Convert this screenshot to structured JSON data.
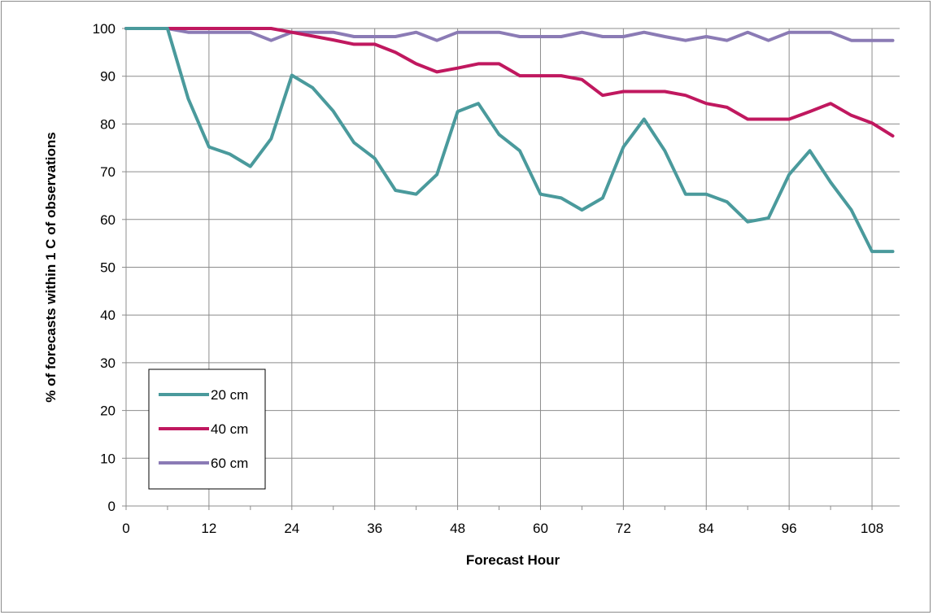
{
  "chart_data": {
    "type": "line",
    "title": "",
    "xlabel": "Forecast Hour",
    "ylabel": "% of forecasts within 1 C of observations",
    "xlim": [
      0,
      112
    ],
    "ylim": [
      0,
      100
    ],
    "xticks": [
      0,
      12,
      24,
      36,
      48,
      60,
      72,
      84,
      96,
      108
    ],
    "yticks": [
      0,
      10,
      20,
      30,
      40,
      50,
      60,
      70,
      80,
      90,
      100
    ],
    "grid": true,
    "legend_position": "bottom-left",
    "x": [
      0,
      3,
      6,
      9,
      12,
      15,
      18,
      21,
      24,
      27,
      30,
      33,
      36,
      39,
      42,
      45,
      48,
      51,
      54,
      57,
      60,
      63,
      66,
      69,
      72,
      75,
      78,
      81,
      84,
      87,
      90,
      93,
      96,
      99,
      102,
      105,
      108,
      111
    ],
    "series": [
      {
        "name": "20 cm",
        "color": "#4a9a9c",
        "values": [
          100,
          100,
          100,
          85.3,
          75.2,
          73.7,
          71.1,
          76.9,
          90.2,
          87.6,
          82.7,
          76.1,
          72.8,
          66.1,
          65.3,
          69.4,
          82.6,
          84.3,
          77.8,
          74.4,
          65.3,
          64.5,
          62.0,
          64.5,
          75.2,
          81.0,
          74.4,
          65.3,
          65.3,
          63.7,
          59.5,
          60.3,
          69.4,
          74.4,
          67.8,
          62.0,
          53.3,
          53.3
        ]
      },
      {
        "name": "40 cm",
        "color": "#c0185f",
        "values": [
          100,
          100,
          100,
          100,
          100,
          100,
          100,
          100,
          99.2,
          98.4,
          97.6,
          96.7,
          96.7,
          95.0,
          92.6,
          90.9,
          91.7,
          92.6,
          92.6,
          90.1,
          90.1,
          90.1,
          89.3,
          86.0,
          86.8,
          86.8,
          86.8,
          86.0,
          84.3,
          83.5,
          81.0,
          81.0,
          81.0,
          82.6,
          84.3,
          81.8,
          80.2,
          77.5
        ]
      },
      {
        "name": "60 cm",
        "color": "#8b7bb5",
        "values": [
          100,
          100,
          100,
          99.2,
          99.2,
          99.2,
          99.2,
          97.5,
          99.2,
          99.2,
          99.2,
          98.3,
          98.3,
          98.3,
          99.2,
          97.5,
          99.2,
          99.2,
          99.2,
          98.3,
          98.3,
          98.3,
          99.2,
          98.3,
          98.3,
          99.2,
          98.3,
          97.5,
          98.3,
          97.5,
          99.2,
          97.5,
          99.2,
          99.2,
          99.2,
          97.5,
          97.5,
          97.5
        ]
      }
    ]
  }
}
